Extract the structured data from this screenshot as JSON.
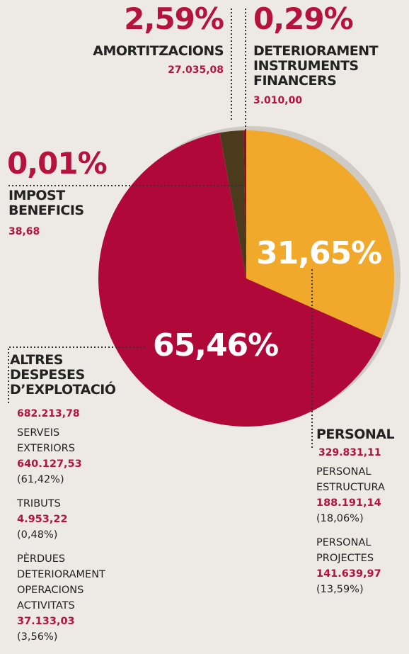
{
  "chart_data": {
    "type": "pie",
    "categories": [
      "PERSONAL",
      "ALTRES\nDESPESES\nD’EXPLOTACIÓ",
      "IMPOST\nBENEFICIS",
      "AMORTITZACIONS",
      "DETERIORAMENT\nINSTRUMENTS\nFINANCERS"
    ],
    "values": [
      31.65,
      65.46,
      0.01,
      2.59,
      0.29
    ],
    "value_labels": [
      "31,65%",
      "65,46%",
      "0,01%",
      "2,59%",
      "0,29%"
    ],
    "amounts": [
      "329.831,11",
      "682.213,78",
      "38,68",
      "27.035,08",
      "3.010,00"
    ],
    "colors": [
      "#f0a92b",
      "#b00838",
      "#7a1020",
      "#4b3a1c",
      "#8a0f25"
    ],
    "details": [
      [
        {
          "name": "PERSONAL\nESTRUCTURA",
          "amount": "188.191,14",
          "share": "(18,06%)"
        },
        {
          "name": "PERSONAL\nPROJECTES",
          "amount": "141.639,97",
          "share": "(13,59%)"
        }
      ],
      [
        {
          "name": "SERVEIS\nEXTERIORS",
          "amount": "640.127,53",
          "share": "(61,42%)"
        },
        {
          "name": "TRIBUTS",
          "amount": "4.953,22",
          "share": "(0,48%)"
        },
        {
          "name": "PÈRDUES\nDETERIORAMENT\nOPERACIONS\nACTIVITATS",
          "amount": "37.133,03",
          "share": "(3,56%)"
        }
      ],
      [],
      [],
      []
    ]
  }
}
